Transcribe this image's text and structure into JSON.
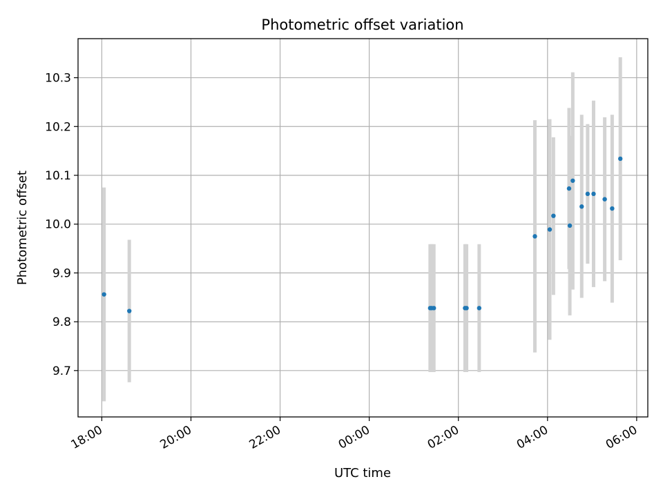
{
  "chart_data": {
    "type": "scatter",
    "title": "Photometric offset variation",
    "xlabel": "UTC time",
    "ylabel": "Photometric offset",
    "grid": true,
    "x_axis": {
      "kind": "time",
      "range": [
        "17:28",
        "06:15"
      ],
      "ticks": [
        "18:00",
        "20:00",
        "22:00",
        "00:00",
        "02:00",
        "04:00",
        "06:00"
      ]
    },
    "y_axis": {
      "range": [
        9.605,
        10.38
      ],
      "ticks": [
        "9.7",
        "9.8",
        "9.9",
        "10.0",
        "10.1",
        "10.2",
        "10.3"
      ]
    },
    "colors": {
      "points": "#1f77b4",
      "error_bars": "#d3d3d3",
      "grid": "#b0b0b0"
    },
    "series": [
      {
        "points": [
          {
            "x": "18:03",
            "y": 9.856,
            "ymin": 9.637,
            "ymax": 10.075
          },
          {
            "x": "18:37",
            "y": 9.822,
            "ymin": 9.676,
            "ymax": 9.968
          },
          {
            "x": "01:22",
            "y": 9.828,
            "ymin": 9.697,
            "ymax": 9.959
          },
          {
            "x": "01:24",
            "y": 9.828,
            "ymin": 9.697,
            "ymax": 9.959
          },
          {
            "x": "01:27",
            "y": 9.828,
            "ymin": 9.697,
            "ymax": 9.959
          },
          {
            "x": "02:09",
            "y": 9.828,
            "ymin": 9.697,
            "ymax": 9.959
          },
          {
            "x": "02:11",
            "y": 9.828,
            "ymin": 9.697,
            "ymax": 9.959
          },
          {
            "x": "02:28",
            "y": 9.828,
            "ymin": 9.697,
            "ymax": 9.959
          },
          {
            "x": "03:43",
            "y": 9.975,
            "ymin": 9.737,
            "ymax": 10.213
          },
          {
            "x": "04:03",
            "y": 9.989,
            "ymin": 9.763,
            "ymax": 10.215
          },
          {
            "x": "04:08",
            "y": 10.017,
            "ymin": 9.855,
            "ymax": 10.178
          },
          {
            "x": "04:29",
            "y": 10.073,
            "ymin": 9.908,
            "ymax": 10.238
          },
          {
            "x": "04:30",
            "y": 9.997,
            "ymin": 9.813,
            "ymax": 10.181
          },
          {
            "x": "04:34",
            "y": 10.089,
            "ymin": 9.866,
            "ymax": 10.311
          },
          {
            "x": "04:46",
            "y": 10.036,
            "ymin": 9.849,
            "ymax": 10.224
          },
          {
            "x": "04:54",
            "y": 10.062,
            "ymin": 9.919,
            "ymax": 10.205
          },
          {
            "x": "05:02",
            "y": 10.062,
            "ymin": 9.871,
            "ymax": 10.253
          },
          {
            "x": "05:17",
            "y": 10.051,
            "ymin": 9.883,
            "ymax": 10.219
          },
          {
            "x": "05:27",
            "y": 10.032,
            "ymin": 9.839,
            "ymax": 10.224
          },
          {
            "x": "05:38",
            "y": 10.134,
            "ymin": 9.926,
            "ymax": 10.342
          }
        ]
      }
    ]
  }
}
